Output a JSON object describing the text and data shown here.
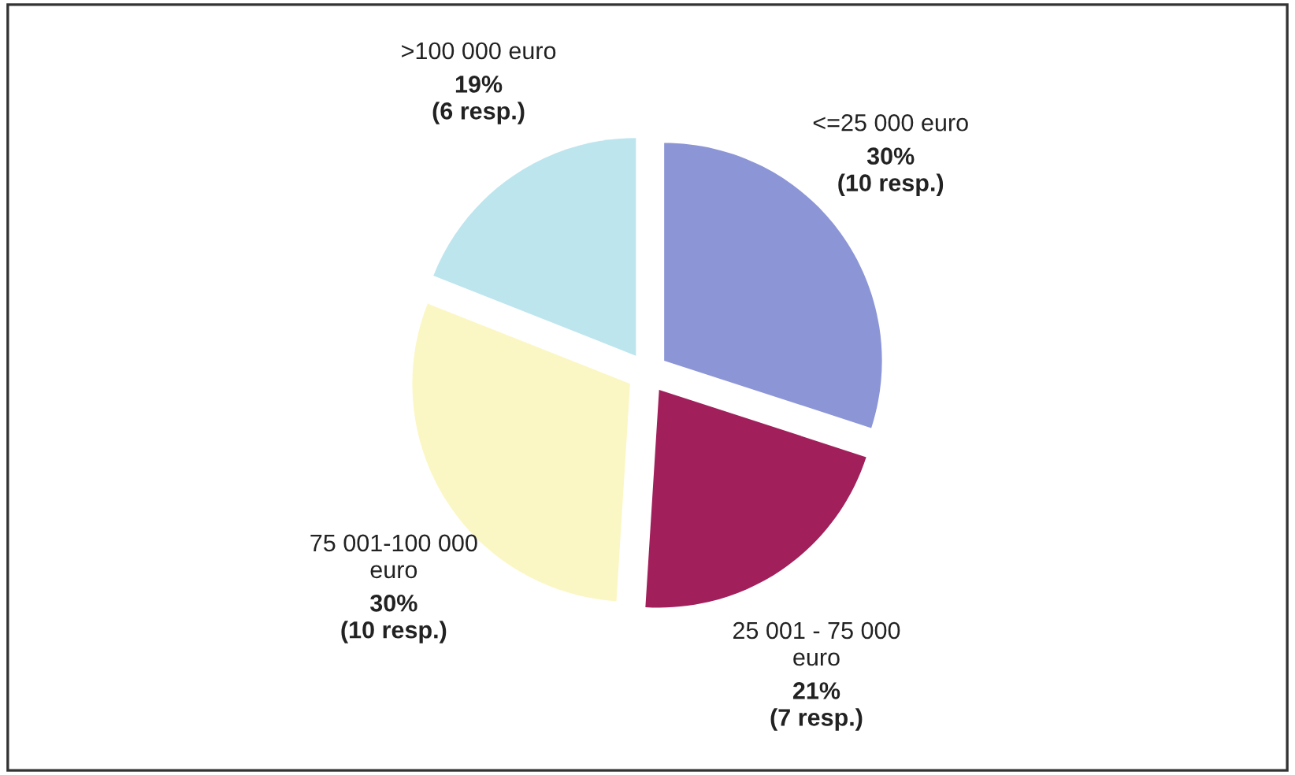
{
  "chart_data": {
    "type": "pie",
    "categories": [
      "<=25 000 euro",
      "25 001 - 75 000\neuro",
      "75 001-100 000\neuro",
      ">100 000 euro"
    ],
    "values": [
      30,
      21,
      30,
      19
    ],
    "colors": [
      "#8c96d6",
      "#a1205c",
      "#fbf7c4",
      "#bde5ee"
    ],
    "value_labels": [
      "30%\n(10 resp.)",
      "21%\n(7 resp.)",
      "30%\n(10 resp.)",
      "19%\n(6 resp.)"
    ]
  }
}
